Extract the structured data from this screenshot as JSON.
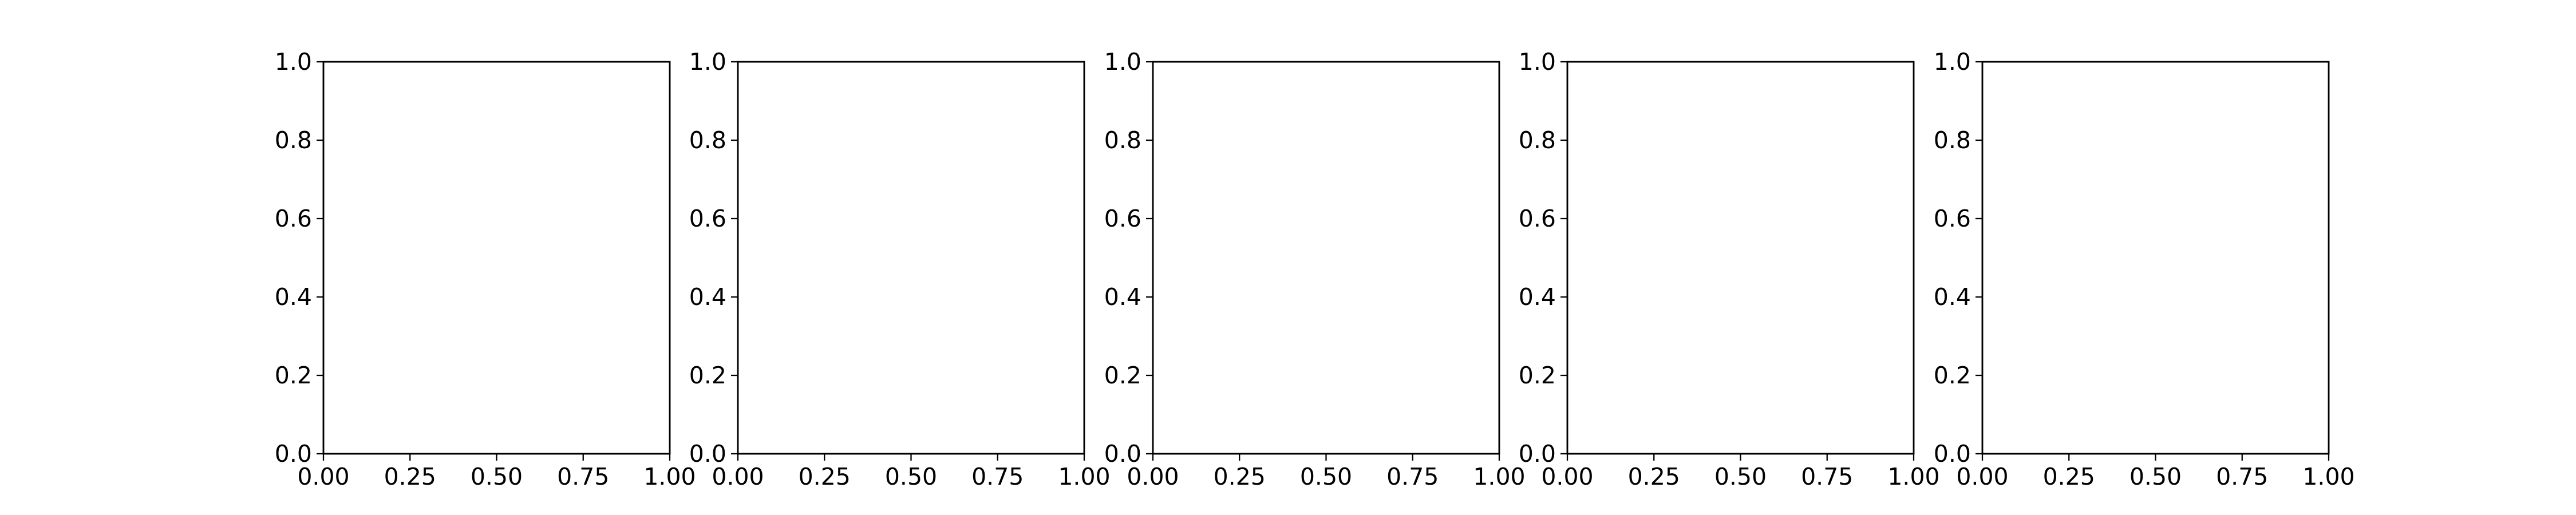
{
  "chart_data": [
    {
      "type": "scatter",
      "title": "",
      "xlabel": "",
      "ylabel": "",
      "xlim": [
        0,
        1
      ],
      "ylim": [
        0,
        1
      ],
      "xticks": [
        0,
        0.25,
        0.5,
        0.75,
        1
      ],
      "xtick_labels": [
        "0.00",
        "0.25",
        "0.50",
        "0.75",
        "1.00"
      ],
      "yticks": [
        0,
        0.2,
        0.4,
        0.6,
        0.8,
        1
      ],
      "ytick_labels": [
        "0.0",
        "0.2",
        "0.4",
        "0.6",
        "0.8",
        "1.0"
      ],
      "grid": false,
      "series": []
    },
    {
      "type": "scatter",
      "title": "",
      "xlabel": "",
      "ylabel": "",
      "xlim": [
        0,
        1
      ],
      "ylim": [
        0,
        1
      ],
      "xticks": [
        0,
        0.25,
        0.5,
        0.75,
        1
      ],
      "xtick_labels": [
        "0.00",
        "0.25",
        "0.50",
        "0.75",
        "1.00"
      ],
      "yticks": [
        0,
        0.2,
        0.4,
        0.6,
        0.8,
        1
      ],
      "ytick_labels": [
        "0.0",
        "0.2",
        "0.4",
        "0.6",
        "0.8",
        "1.0"
      ],
      "grid": false,
      "series": []
    },
    {
      "type": "scatter",
      "title": "",
      "xlabel": "",
      "ylabel": "",
      "xlim": [
        0,
        1
      ],
      "ylim": [
        0,
        1
      ],
      "xticks": [
        0,
        0.25,
        0.5,
        0.75,
        1
      ],
      "xtick_labels": [
        "0.00",
        "0.25",
        "0.50",
        "0.75",
        "1.00"
      ],
      "yticks": [
        0,
        0.2,
        0.4,
        0.6,
        0.8,
        1
      ],
      "ytick_labels": [
        "0.0",
        "0.2",
        "0.4",
        "0.6",
        "0.8",
        "1.0"
      ],
      "grid": false,
      "series": []
    },
    {
      "type": "scatter",
      "title": "",
      "xlabel": "",
      "ylabel": "",
      "xlim": [
        0,
        1
      ],
      "ylim": [
        0,
        1
      ],
      "xticks": [
        0,
        0.25,
        0.5,
        0.75,
        1
      ],
      "xtick_labels": [
        "0.00",
        "0.25",
        "0.50",
        "0.75",
        "1.00"
      ],
      "yticks": [
        0,
        0.2,
        0.4,
        0.6,
        0.8,
        1
      ],
      "ytick_labels": [
        "0.0",
        "0.2",
        "0.4",
        "0.6",
        "0.8",
        "1.0"
      ],
      "grid": false,
      "series": []
    },
    {
      "type": "scatter",
      "title": "",
      "xlabel": "",
      "ylabel": "",
      "xlim": [
        0,
        1
      ],
      "ylim": [
        0,
        1
      ],
      "xticks": [
        0,
        0.25,
        0.5,
        0.75,
        1
      ],
      "xtick_labels": [
        "0.00",
        "0.25",
        "0.50",
        "0.75",
        "1.00"
      ],
      "yticks": [
        0,
        0.2,
        0.4,
        0.6,
        0.8,
        1
      ],
      "ytick_labels": [
        "0.0",
        "0.2",
        "0.4",
        "0.6",
        "0.8",
        "1.0"
      ],
      "grid": false,
      "series": []
    }
  ]
}
